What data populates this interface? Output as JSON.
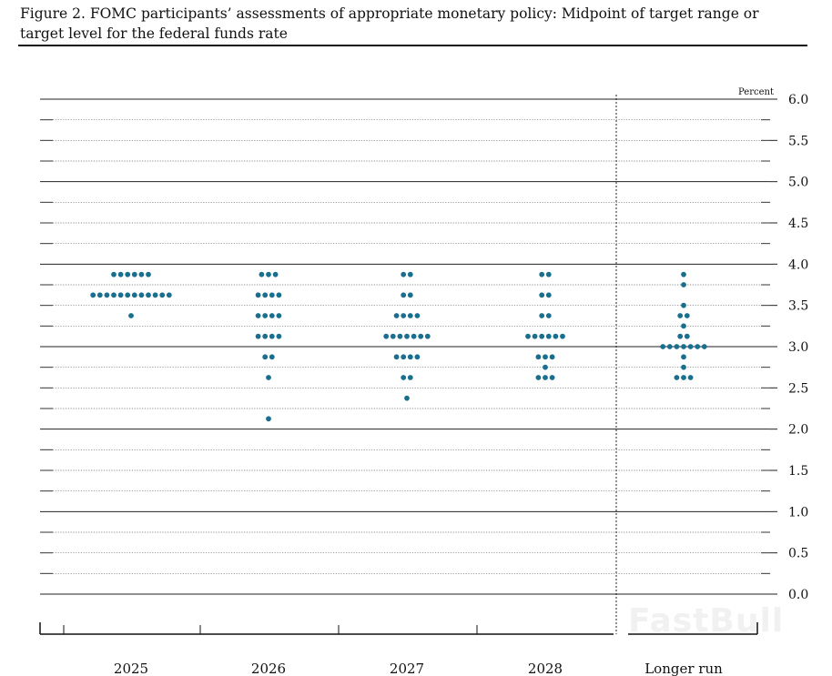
{
  "title": "Figure 2. FOMC participants’ assessments of appropriate monetary policy: Midpoint of target range or target level for the federal funds rate",
  "watermark": "FastBull",
  "chart_data": {
    "type": "scatter",
    "subtype": "dot-plot",
    "title": "Figure 2. FOMC participants’ assessments of appropriate monetary policy: Midpoint of target range or target level for the federal funds rate",
    "ylabel": "Percent",
    "ylim": [
      0,
      6
    ],
    "y_ticks": [
      "0.0",
      "0.5",
      "1.0",
      "1.5",
      "2.0",
      "2.5",
      "3.0",
      "3.5",
      "4.0",
      "4.5",
      "5.0",
      "5.5",
      "6.0"
    ],
    "y_axis_side": "right",
    "dot_color": "#1a6f8f",
    "grid": true,
    "categories": [
      "2025",
      "2026",
      "2027",
      "2028",
      "Longer run"
    ],
    "groups": [
      {
        "category": "2025",
        "dots": [
          {
            "y": 3.875,
            "n": 6
          },
          {
            "y": 3.625,
            "n": 12
          },
          {
            "y": 3.375,
            "n": 1
          }
        ]
      },
      {
        "category": "2026",
        "dots": [
          {
            "y": 3.875,
            "n": 3
          },
          {
            "y": 3.625,
            "n": 4
          },
          {
            "y": 3.375,
            "n": 4
          },
          {
            "y": 3.125,
            "n": 4
          },
          {
            "y": 2.875,
            "n": 2
          },
          {
            "y": 2.625,
            "n": 1
          },
          {
            "y": 2.125,
            "n": 1
          }
        ]
      },
      {
        "category": "2027",
        "dots": [
          {
            "y": 3.875,
            "n": 2
          },
          {
            "y": 3.625,
            "n": 2
          },
          {
            "y": 3.375,
            "n": 4
          },
          {
            "y": 3.125,
            "n": 7
          },
          {
            "y": 2.875,
            "n": 4
          },
          {
            "y": 2.625,
            "n": 2
          },
          {
            "y": 2.375,
            "n": 1
          }
        ]
      },
      {
        "category": "2028",
        "dots": [
          {
            "y": 3.875,
            "n": 2
          },
          {
            "y": 3.625,
            "n": 2
          },
          {
            "y": 3.375,
            "n": 2
          },
          {
            "y": 3.125,
            "n": 6
          },
          {
            "y": 2.875,
            "n": 3
          },
          {
            "y": 2.75,
            "n": 1
          },
          {
            "y": 2.625,
            "n": 3
          }
        ]
      },
      {
        "category": "Longer run",
        "dots": [
          {
            "y": 3.875,
            "n": 1
          },
          {
            "y": 3.75,
            "n": 1
          },
          {
            "y": 3.5,
            "n": 1
          },
          {
            "y": 3.375,
            "n": 2
          },
          {
            "y": 3.25,
            "n": 1
          },
          {
            "y": 3.125,
            "n": 2
          },
          {
            "y": 3.0,
            "n": 7
          },
          {
            "y": 2.875,
            "n": 1
          },
          {
            "y": 2.75,
            "n": 1
          },
          {
            "y": 2.625,
            "n": 3
          }
        ]
      }
    ]
  }
}
